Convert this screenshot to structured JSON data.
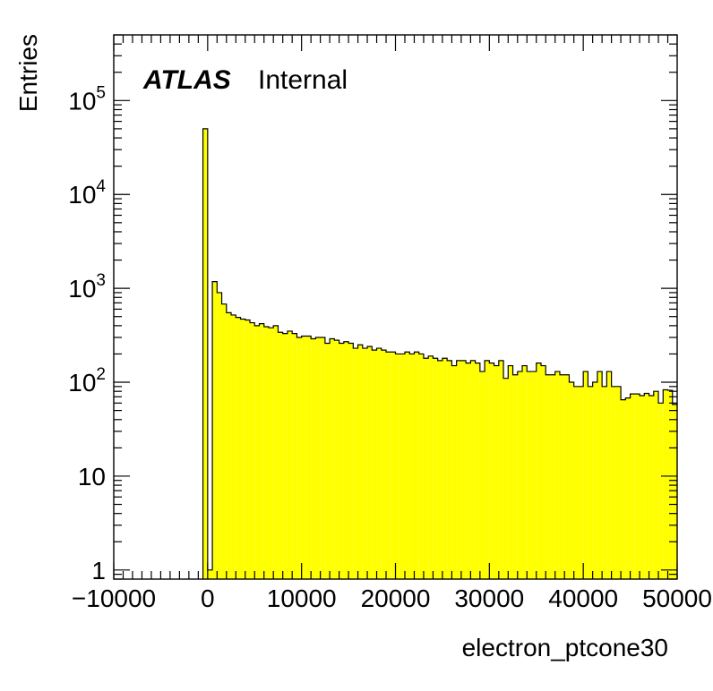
{
  "chart_data": {
    "type": "bar",
    "style": "histogram",
    "xlabel": "electron_ptcone30",
    "ylabel": "Entries",
    "annotation": {
      "bold": "ATLAS",
      "normal": "Internal"
    },
    "xlim": [
      -10000,
      50000
    ],
    "ylim": [
      0.8,
      500000
    ],
    "yscale": "log",
    "bin_width": 500,
    "x_ticks": [
      {
        "value": -10000,
        "label": "−10000"
      },
      {
        "value": 0,
        "label": "0"
      },
      {
        "value": 10000,
        "label": "10000"
      },
      {
        "value": 20000,
        "label": "20000"
      },
      {
        "value": 30000,
        "label": "30000"
      },
      {
        "value": 40000,
        "label": "40000"
      },
      {
        "value": 50000,
        "label": "50000"
      }
    ],
    "y_ticks": [
      {
        "value": 1,
        "base": "1",
        "exp": ""
      },
      {
        "value": 10,
        "base": "10",
        "exp": ""
      },
      {
        "value": 100,
        "base": "10",
        "exp": "2"
      },
      {
        "value": 1000,
        "base": "10",
        "exp": "3"
      },
      {
        "value": 10000,
        "base": "10",
        "exp": "4"
      },
      {
        "value": 100000,
        "base": "10",
        "exp": "5"
      }
    ],
    "fill_color": "#ffff00",
    "line_color": "#000000",
    "x": [
      -500,
      0,
      500,
      1000,
      1500,
      2000,
      2500,
      3000,
      3500,
      4000,
      4500,
      5000,
      5500,
      6000,
      6500,
      7000,
      7500,
      8000,
      8500,
      9000,
      9500,
      10000,
      10500,
      11000,
      11500,
      12000,
      12500,
      13000,
      13500,
      14000,
      14500,
      15000,
      15500,
      16000,
      16500,
      17000,
      17500,
      18000,
      18500,
      19000,
      19500,
      20000,
      20500,
      21000,
      21500,
      22000,
      22500,
      23000,
      23500,
      24000,
      24500,
      25000,
      25500,
      26000,
      26500,
      27000,
      27500,
      28000,
      28500,
      29000,
      29500,
      30000,
      30500,
      31000,
      31500,
      32000,
      32500,
      33000,
      33500,
      34000,
      34500,
      35000,
      35500,
      36000,
      36500,
      37000,
      37500,
      38000,
      38500,
      39000,
      39500,
      40000,
      40500,
      41000,
      41500,
      42000,
      42500,
      43000,
      43500,
      44000,
      44500,
      45000,
      45500,
      46000,
      46500,
      47000,
      47500,
      48000,
      48500,
      49000,
      49500
    ],
    "values": [
      50000,
      1,
      1180,
      900,
      680,
      550,
      520,
      490,
      470,
      460,
      430,
      400,
      420,
      390,
      380,
      400,
      340,
      330,
      350,
      330,
      300,
      310,
      310,
      290,
      300,
      300,
      260,
      290,
      280,
      260,
      270,
      260,
      230,
      250,
      230,
      240,
      220,
      230,
      220,
      210,
      210,
      200,
      200,
      210,
      200,
      210,
      200,
      180,
      190,
      180,
      170,
      180,
      170,
      150,
      170,
      170,
      160,
      170,
      160,
      130,
      170,
      160,
      150,
      170,
      110,
      150,
      120,
      130,
      150,
      130,
      130,
      160,
      150,
      120,
      120,
      130,
      120,
      120,
      100,
      90,
      90,
      130,
      90,
      100,
      130,
      90,
      130,
      90,
      90,
      65,
      68,
      75,
      75,
      72,
      76,
      72,
      80,
      60,
      83,
      82,
      58
    ]
  }
}
